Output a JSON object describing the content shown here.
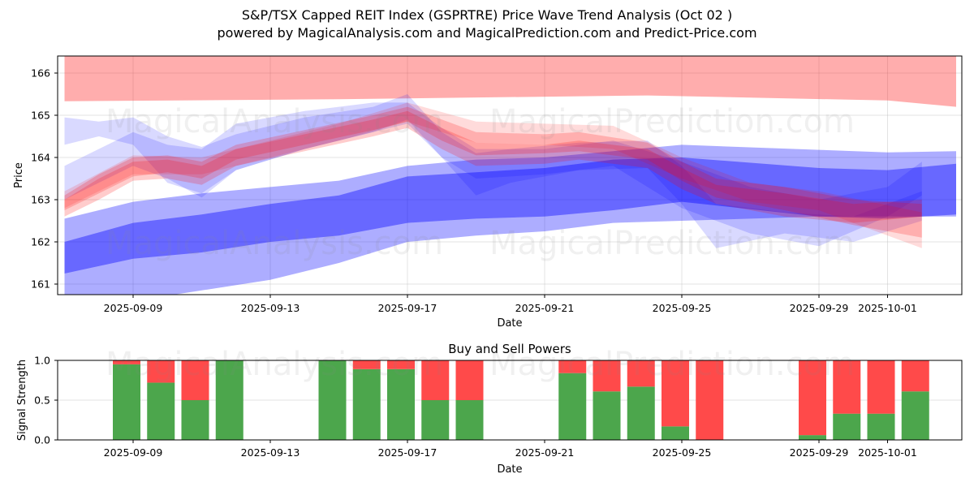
{
  "header": {
    "title": "S&P/TSX Capped REIT Index (GSPRTRE) Price Wave Trend Analysis (Oct 02 )",
    "subtitle": "powered by MagicalAnalysis.com and MagicalPrediction.com and Predict-Price.com"
  },
  "watermarks": [
    "MagicalAnalysis.com",
    "MagicalPrediction.com"
  ],
  "chart_data": [
    {
      "type": "area",
      "name": "price-wave-trend",
      "xlabel": "Date",
      "ylabel": "Price",
      "ylim": [
        160.75,
        166.4
      ],
      "xlim": [
        "2025-09-06.8",
        "2025-10-03.2"
      ],
      "grid": true,
      "yticks": [
        161,
        162,
        163,
        164,
        165,
        166
      ],
      "xticks": [
        "2025-09-09",
        "2025-09-13",
        "2025-09-17",
        "2025-09-21",
        "2025-09-25",
        "2025-09-29",
        "2025-10-01"
      ],
      "colors": {
        "up": "#ff0000",
        "down": "#0000ff"
      },
      "bands": [
        {
          "color": "red",
          "opacity": 0.32,
          "x": [
            "2025-09-07",
            "2025-09-15",
            "2025-09-24",
            "2025-10-01",
            "2025-10-03"
          ],
          "upper": [
            166.5,
            166.5,
            166.5,
            166.5,
            166.5
          ],
          "lower": [
            165.33,
            165.38,
            165.47,
            165.35,
            165.2
          ]
        },
        {
          "color": "blue",
          "opacity": 0.32,
          "x": [
            "2025-09-07",
            "2025-09-09",
            "2025-09-11",
            "2025-09-13",
            "2025-09-15",
            "2025-09-17",
            "2025-09-19",
            "2025-09-21",
            "2025-09-23",
            "2025-09-25",
            "2025-09-29",
            "2025-10-01",
            "2025-10-03"
          ],
          "upper": [
            162.55,
            162.95,
            163.15,
            163.3,
            163.45,
            163.8,
            163.95,
            164.0,
            164.15,
            164.3,
            164.18,
            164.12,
            164.15
          ],
          "lower": [
            160.3,
            160.6,
            160.85,
            161.1,
            161.5,
            162.0,
            162.15,
            162.25,
            162.45,
            162.5,
            162.6,
            162.6,
            162.6
          ]
        },
        {
          "color": "blue",
          "opacity": 0.4,
          "x": [
            "2025-09-07",
            "2025-09-09",
            "2025-09-11",
            "2025-09-13",
            "2025-09-15",
            "2025-09-17",
            "2025-09-19",
            "2025-09-21",
            "2025-09-23",
            "2025-09-25",
            "2025-09-29",
            "2025-10-01",
            "2025-10-03"
          ],
          "upper": [
            162.0,
            162.45,
            162.65,
            162.9,
            163.1,
            163.55,
            163.65,
            163.75,
            163.95,
            164.0,
            163.75,
            163.7,
            163.85
          ],
          "lower": [
            161.25,
            161.6,
            161.75,
            162.0,
            162.15,
            162.45,
            162.55,
            162.6,
            162.75,
            162.95,
            162.6,
            162.55,
            162.65
          ]
        },
        {
          "color": "blue",
          "opacity": 0.15,
          "x": [
            "2025-09-07",
            "2025-09-08",
            "2025-09-09",
            "2025-09-10",
            "2025-09-11",
            "2025-09-12",
            "2025-09-14",
            "2025-09-16",
            "2025-09-17",
            "2025-09-18",
            "2025-09-19",
            "2025-09-20",
            "2025-09-22",
            "2025-09-24",
            "2025-09-25",
            "2025-09-26",
            "2025-09-28",
            "2025-09-30",
            "2025-10-02"
          ],
          "upper": [
            164.95,
            164.85,
            164.95,
            164.5,
            164.25,
            164.55,
            164.95,
            165.2,
            165.5,
            164.6,
            164.1,
            164.2,
            164.35,
            164.4,
            163.8,
            162.9,
            162.7,
            162.6,
            163.2
          ],
          "lower": [
            164.3,
            164.5,
            164.3,
            163.4,
            163.15,
            163.7,
            164.2,
            164.6,
            164.9,
            164.0,
            163.1,
            163.4,
            163.7,
            163.75,
            162.9,
            161.85,
            162.2,
            162.0,
            162.5
          ]
        },
        {
          "color": "blue",
          "opacity": 0.15,
          "x": [
            "2025-09-07",
            "2025-09-09",
            "2025-09-10",
            "2025-09-11",
            "2025-09-12",
            "2025-09-14",
            "2025-09-16",
            "2025-09-17",
            "2025-09-18",
            "2025-09-19",
            "2025-09-21",
            "2025-09-23",
            "2025-09-25",
            "2025-09-27",
            "2025-09-29",
            "2025-10-01",
            "2025-10-02"
          ],
          "upper": [
            163.8,
            164.6,
            164.3,
            164.2,
            164.8,
            165.1,
            165.3,
            165.3,
            164.7,
            164.2,
            164.2,
            164.4,
            163.9,
            163.3,
            163.0,
            163.3,
            163.9
          ],
          "lower": [
            163.0,
            163.8,
            163.5,
            163.05,
            163.7,
            164.2,
            164.6,
            164.8,
            164.0,
            163.5,
            163.6,
            163.8,
            162.8,
            162.2,
            161.9,
            162.6,
            163.1
          ]
        },
        {
          "color": "red",
          "opacity": 0.2,
          "x": [
            "2025-09-07",
            "2025-09-08",
            "2025-09-09",
            "2025-09-10",
            "2025-09-11",
            "2025-09-12",
            "2025-09-14",
            "2025-09-16",
            "2025-09-17",
            "2025-09-18",
            "2025-09-19",
            "2025-09-21",
            "2025-09-22",
            "2025-09-24",
            "2025-09-25",
            "2025-09-26",
            "2025-09-28",
            "2025-09-30",
            "2025-10-02"
          ],
          "upper": [
            163.1,
            163.6,
            164.0,
            164.05,
            163.9,
            164.3,
            164.65,
            165.0,
            165.2,
            164.9,
            164.6,
            164.55,
            164.6,
            164.35,
            163.9,
            163.5,
            163.3,
            163.0,
            162.9
          ],
          "lower": [
            162.75,
            163.15,
            163.55,
            163.65,
            163.5,
            163.95,
            164.3,
            164.65,
            164.85,
            164.4,
            164.05,
            164.1,
            164.15,
            163.95,
            163.45,
            163.05,
            162.75,
            162.4,
            162.1
          ]
        },
        {
          "color": "red",
          "opacity": 0.2,
          "x": [
            "2025-09-07",
            "2025-09-08",
            "2025-09-09",
            "2025-09-10",
            "2025-09-11",
            "2025-09-12",
            "2025-09-14",
            "2025-09-16",
            "2025-09-17",
            "2025-09-18",
            "2025-09-19",
            "2025-09-21",
            "2025-09-22",
            "2025-09-24",
            "2025-09-25",
            "2025-09-26",
            "2025-09-28",
            "2025-09-30",
            "2025-10-02"
          ],
          "upper": [
            163.0,
            163.5,
            163.9,
            163.95,
            163.8,
            164.2,
            164.55,
            164.9,
            165.1,
            164.7,
            164.35,
            164.3,
            164.4,
            164.2,
            163.75,
            163.35,
            163.15,
            162.9,
            163.0
          ],
          "lower": [
            162.6,
            163.0,
            163.45,
            163.5,
            163.35,
            163.8,
            164.15,
            164.5,
            164.7,
            164.2,
            163.8,
            163.85,
            163.95,
            163.75,
            163.25,
            162.9,
            162.6,
            162.45,
            162.6
          ]
        },
        {
          "color": "red",
          "opacity": 0.14,
          "x": [
            "2025-09-07",
            "2025-09-09",
            "2025-09-11",
            "2025-09-13",
            "2025-09-15",
            "2025-09-17",
            "2025-09-19",
            "2025-09-21",
            "2025-09-23",
            "2025-09-25",
            "2025-09-27",
            "2025-09-29",
            "2025-10-02"
          ],
          "upper": [
            163.2,
            164.05,
            164.0,
            164.4,
            164.8,
            165.3,
            164.85,
            164.8,
            164.75,
            164.0,
            163.4,
            163.2,
            162.7
          ],
          "lower": [
            162.8,
            163.6,
            163.6,
            164.0,
            164.4,
            164.85,
            164.35,
            164.3,
            164.2,
            163.5,
            162.95,
            162.75,
            161.85
          ]
        }
      ]
    },
    {
      "type": "bar",
      "name": "buy-sell-powers",
      "title": "Buy and Sell Powers",
      "xlabel": "Date",
      "ylabel": "Signal Strength",
      "ylim": [
        0,
        1
      ],
      "yticks": [
        "0.0",
        "0.5",
        "1.0"
      ],
      "xticks": [
        "2025-09-09",
        "2025-09-13",
        "2025-09-17",
        "2025-09-21",
        "2025-09-25",
        "2025-09-29",
        "2025-10-01"
      ],
      "colors": {
        "buy": "#4ca64c",
        "sell": "#ff4a4a"
      },
      "dates": [
        "2025-09-09",
        "2025-09-10",
        "2025-09-11",
        "2025-09-12",
        "2025-09-15",
        "2025-09-16",
        "2025-09-17",
        "2025-09-18",
        "2025-09-19",
        "2025-09-22",
        "2025-09-23",
        "2025-09-24",
        "2025-09-25",
        "2025-09-26",
        "2025-09-29",
        "2025-09-30",
        "2025-10-01",
        "2025-10-02"
      ],
      "series": [
        {
          "name": "Buy",
          "values": [
            0.95,
            0.72,
            0.5,
            1.0,
            1.0,
            0.89,
            0.89,
            0.5,
            0.5,
            0.84,
            0.61,
            0.67,
            0.17,
            0.0,
            0.06,
            0.33,
            0.33,
            0.61
          ]
        },
        {
          "name": "Sell",
          "values": [
            0.05,
            0.28,
            0.5,
            0.0,
            0.0,
            0.11,
            0.11,
            0.5,
            0.5,
            0.16,
            0.39,
            0.33,
            0.83,
            1.0,
            0.94,
            0.67,
            0.67,
            0.39
          ]
        }
      ]
    }
  ]
}
